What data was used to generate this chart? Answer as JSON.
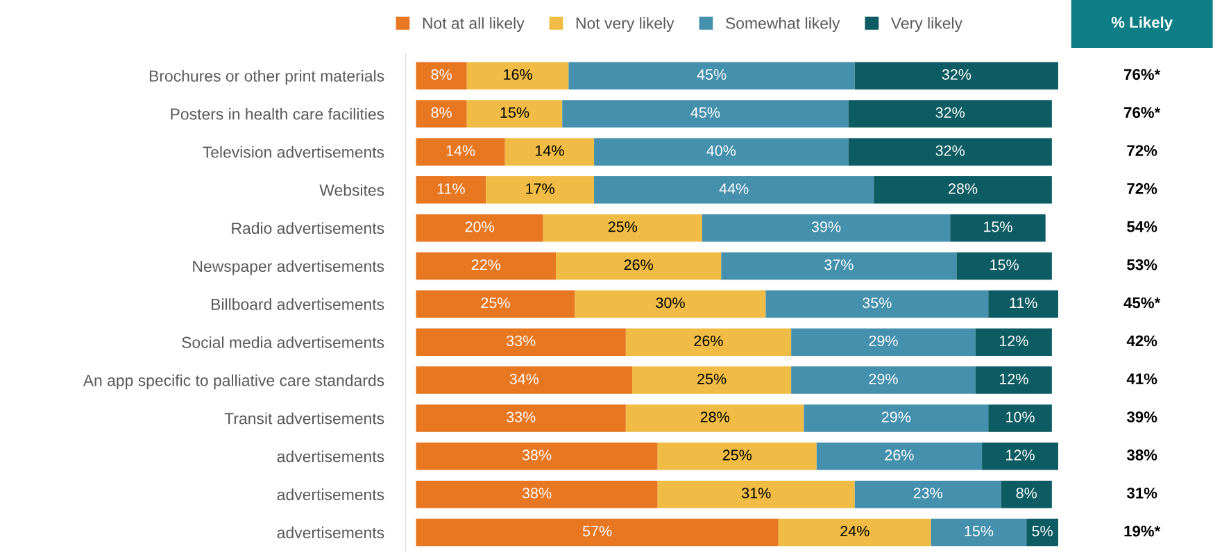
{
  "chart_data": {
    "type": "bar",
    "orientation": "horizontal",
    "stacked": true,
    "legend": "top",
    "grid": false,
    "categories": [
      "Brochures or other print materials",
      "Posters in health care facilities",
      "Television advertisements",
      "Websites",
      "Radio advertisements",
      "Newspaper advertisements",
      "Billboard advertisements",
      "Social media advertisements",
      "An app specific to palliative care standards",
      "Transit advertisements",
      "advertisements",
      "advertisements",
      "advertisements"
    ],
    "series": [
      {
        "name": "Not at all likely",
        "color": "#e87722",
        "values": [
          8,
          8,
          14,
          11,
          20,
          22,
          25,
          33,
          34,
          33,
          38,
          38,
          57
        ],
        "value_labels": [
          "8%",
          "8%",
          "14%",
          "11%",
          "20%",
          "22%",
          "25%",
          "33%",
          "34%",
          "33%",
          "38%",
          "38%",
          "57%"
        ]
      },
      {
        "name": "Not very likely",
        "color": "#f0bc45",
        "values": [
          16,
          15,
          14,
          17,
          25,
          26,
          30,
          26,
          25,
          28,
          25,
          31,
          24
        ],
        "value_labels": [
          "16%",
          "15%",
          "14%",
          "17%",
          "25%",
          "26%",
          "30%",
          "26%",
          "25%",
          "28%",
          "25%",
          "31%",
          "24%"
        ]
      },
      {
        "name": "Somewhat likely",
        "color": "#4490ad",
        "values": [
          45,
          45,
          40,
          44,
          39,
          37,
          35,
          29,
          29,
          29,
          26,
          23,
          15
        ],
        "value_labels": [
          "45%",
          "45%",
          "40%",
          "44%",
          "39%",
          "37%",
          "35%",
          "29%",
          "29%",
          "29%",
          "26%",
          "23%",
          "15%"
        ]
      },
      {
        "name": "Very likely",
        "color": "#0d5c63",
        "values": [
          32,
          32,
          32,
          28,
          15,
          15,
          11,
          12,
          12,
          10,
          12,
          8,
          5
        ],
        "value_labels": [
          "32%",
          "32%",
          "32%",
          "28%",
          "15%",
          "15%",
          "11%",
          "12%",
          "12%",
          "10%",
          "12%",
          "8%",
          "5%"
        ]
      }
    ],
    "annotations": [
      "% Likely",
      "76%*",
      "76%*",
      "72%",
      "72%",
      "54%",
      "53%",
      "45%*",
      "42%",
      "41%",
      "39%",
      "38%",
      "31%",
      "19%*"
    ]
  }
}
